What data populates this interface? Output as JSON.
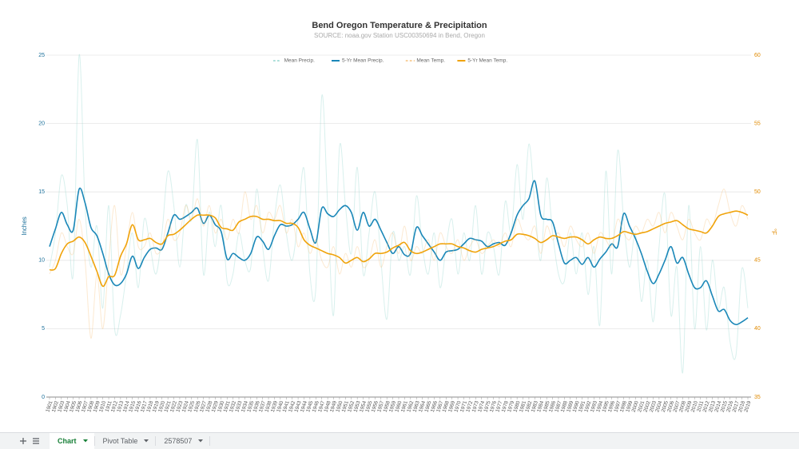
{
  "chart_data": {
    "type": "line",
    "title": "Bend Oregon Temperature & Precipitation",
    "subtitle": "SOURCE: noaa.gov Station USC00350694 in Bend, Oregon",
    "ylabel": "Inches",
    "y2label": "°F",
    "x": [
      1901,
      1902,
      1903,
      1904,
      1905,
      1906,
      1907,
      1908,
      1909,
      1910,
      1911,
      1912,
      1913,
      1914,
      1915,
      1916,
      1917,
      1918,
      1919,
      1920,
      1921,
      1922,
      1923,
      1924,
      1925,
      1926,
      1927,
      1928,
      1929,
      1930,
      1931,
      1932,
      1933,
      1934,
      1935,
      1936,
      1937,
      1938,
      1939,
      1940,
      1941,
      1942,
      1943,
      1944,
      1945,
      1946,
      1947,
      1948,
      1949,
      1950,
      1951,
      1952,
      1953,
      1954,
      1955,
      1956,
      1957,
      1958,
      1959,
      1960,
      1961,
      1962,
      1963,
      1964,
      1965,
      1966,
      1967,
      1968,
      1969,
      1970,
      1971,
      1972,
      1973,
      1974,
      1975,
      1976,
      1977,
      1978,
      1979,
      1980,
      1981,
      1982,
      1983,
      1984,
      1985,
      1986,
      1987,
      1988,
      1989,
      1990,
      1991,
      1992,
      1993,
      1994,
      1995,
      1996,
      1997,
      1998,
      1999,
      2000,
      2001,
      2002,
      2003,
      2004,
      2005,
      2006,
      2007,
      2008,
      2009,
      2010,
      2011,
      2012,
      2013,
      2014,
      2015,
      2016,
      2017,
      2018,
      2019
    ],
    "xlim": [
      1901,
      2019
    ],
    "ylim": [
      0,
      25
    ],
    "yticks": [
      0,
      5,
      10,
      15,
      20,
      25
    ],
    "y2lim": [
      35,
      60
    ],
    "y2ticks": [
      35,
      40,
      45,
      50,
      55,
      60
    ],
    "grid": true,
    "legend": "top",
    "series": [
      {
        "name": "Mean Precip.",
        "color": "#8fd3cc",
        "opacity": 0.35,
        "values": [
          9.5,
          12,
          16.2,
          14,
          9,
          25,
          14,
          9.5,
          12.5,
          6.5,
          14,
          5,
          6,
          9,
          12,
          8,
          13,
          11,
          9,
          12,
          16.5,
          14,
          9.5,
          14,
          13,
          18.8,
          9,
          13.5,
          11,
          14,
          8.5,
          9,
          12,
          10,
          9.5,
          15.2,
          11,
          8.5,
          13,
          15.5,
          12,
          10,
          13,
          16.7,
          9,
          8,
          22,
          14,
          6,
          18.3,
          14,
          10.5,
          16.8,
          9,
          12,
          15,
          10,
          5.7,
          12,
          10,
          11,
          9,
          14.7,
          11,
          9,
          12,
          8,
          11,
          13,
          9,
          12,
          10,
          14,
          9,
          12,
          11,
          9,
          14.3,
          12,
          17,
          13,
          18.5,
          14,
          10,
          16,
          12,
          9,
          8.5,
          12,
          9,
          12,
          7.5,
          11,
          5.3,
          16.5,
          9,
          18,
          13,
          9.5,
          12,
          7,
          10,
          5.5,
          11,
          14.8,
          6,
          9.5,
          1.8,
          14,
          5,
          11,
          4.9,
          10,
          6.5,
          8,
          4,
          3.1,
          9.4,
          6.5
        ]
      },
      {
        "name": "5-Yr Mean Precip.",
        "color": "#1a87b8",
        "opacity": 1,
        "values": [
          11.0,
          12.3,
          13.5,
          12.6,
          12.2,
          15.2,
          14.2,
          12.4,
          11.8,
          10.5,
          9.0,
          8.2,
          8.3,
          9.0,
          10.3,
          9.4,
          10.2,
          10.8,
          10.9,
          10.8,
          12.0,
          13.3,
          13.0,
          13.2,
          13.5,
          13.8,
          12.7,
          13.3,
          12.6,
          12.1,
          10.1,
          10.5,
          10.2,
          10.0,
          10.5,
          11.7,
          11.4,
          10.8,
          11.8,
          12.6,
          12.5,
          12.6,
          13.0,
          13.5,
          12.3,
          11.3,
          13.8,
          13.4,
          13.2,
          13.7,
          14.0,
          13.5,
          12.2,
          13.5,
          12.5,
          13.0,
          12.2,
          11.3,
          10.5,
          11.0,
          10.4,
          10.5,
          12.4,
          11.8,
          11.2,
          10.6,
          10.0,
          10.6,
          10.7,
          10.8,
          11.2,
          11.6,
          11.5,
          11.4,
          11.0,
          11.2,
          11.3,
          11.1,
          12.0,
          13.3,
          14.0,
          14.5,
          15.8,
          13.3,
          13.0,
          12.8,
          11.2,
          9.8,
          10.0,
          10.2,
          9.7,
          10.2,
          9.5,
          10.1,
          10.6,
          11.2,
          11.0,
          13.4,
          12.5,
          11.6,
          10.5,
          9.2,
          8.3,
          9.0,
          10.0,
          11.0,
          9.8,
          10.2,
          9.0,
          8.0,
          8.0,
          8.5,
          7.4,
          6.3,
          6.4,
          5.6,
          5.3,
          5.5,
          5.8
        ]
      },
      {
        "name": "Mean Temp.",
        "color": "#f5c07a",
        "opacity": 0.35,
        "axis": "y2",
        "values": [
          44,
          45,
          47,
          46,
          45.5,
          48,
          45,
          39.3,
          44,
          40,
          45,
          49,
          44,
          46,
          48.5,
          46,
          46,
          47,
          45.5,
          46,
          48,
          46.5,
          47,
          49,
          48,
          49.5,
          47.5,
          49,
          47,
          48,
          46.5,
          48,
          47,
          50,
          48,
          49,
          47,
          48.5,
          48,
          49,
          47,
          48,
          46,
          47,
          45.5,
          46.5,
          45,
          44.5,
          46,
          44,
          45.5,
          44.5,
          46,
          44.5,
          45,
          46.5,
          44.5,
          46,
          47,
          45.5,
          47.5,
          45,
          46,
          45.5,
          46.5,
          45,
          47,
          46,
          45.5,
          46.5,
          45,
          46,
          46.5,
          45.5,
          46,
          46.5,
          46,
          47,
          46,
          48,
          47,
          46.5,
          47.5,
          45.5,
          47.5,
          46.5,
          47,
          46,
          47.5,
          46.5,
          46,
          47,
          45.5,
          47,
          46.5,
          46,
          48,
          47,
          46.5,
          47.5,
          47,
          48,
          47.5,
          48.5,
          47,
          48.5,
          47.5,
          46.5,
          48,
          47,
          46.5,
          48,
          47.5,
          49,
          50.2,
          48.5,
          47.5,
          49,
          48
        ]
      },
      {
        "name": "5-Yr Mean Temp.",
        "color": "#f0a30a",
        "opacity": 1,
        "axis": "y2",
        "values": [
          44.3,
          44.4,
          45.5,
          46.2,
          46.4,
          46.7,
          46.3,
          45.3,
          44.2,
          43.1,
          43.8,
          43.9,
          45.3,
          46.2,
          47.6,
          46.5,
          46.5,
          46.6,
          46.3,
          46.2,
          46.8,
          46.9,
          47.2,
          47.6,
          48.0,
          48.3,
          48.3,
          48.3,
          48.1,
          47.4,
          47.3,
          47.2,
          47.8,
          48.0,
          48.2,
          48.2,
          48.0,
          48.0,
          47.9,
          47.9,
          47.7,
          47.7,
          47.4,
          46.5,
          46.1,
          45.9,
          45.7,
          45.5,
          45.4,
          45.2,
          44.8,
          45.0,
          45.2,
          44.9,
          45.1,
          45.5,
          45.5,
          45.6,
          45.9,
          46.1,
          46.3,
          45.7,
          45.5,
          45.6,
          45.8,
          46.0,
          46.2,
          46.2,
          46.2,
          46.0,
          45.9,
          45.7,
          45.6,
          45.8,
          45.9,
          46.0,
          46.2,
          46.4,
          46.5,
          46.9,
          46.9,
          46.8,
          46.6,
          46.3,
          46.5,
          46.8,
          46.7,
          46.6,
          46.7,
          46.7,
          46.5,
          46.2,
          46.5,
          46.7,
          46.6,
          46.6,
          46.8,
          47.1,
          47.0,
          46.9,
          47.0,
          47.1,
          47.3,
          47.5,
          47.7,
          47.8,
          47.9,
          47.6,
          47.3,
          47.2,
          47.1,
          47.0,
          47.5,
          48.2,
          48.4,
          48.5,
          48.6,
          48.5,
          48.3
        ]
      }
    ]
  },
  "tabs": [
    "Chart",
    "Pivot Table",
    "2578507"
  ]
}
